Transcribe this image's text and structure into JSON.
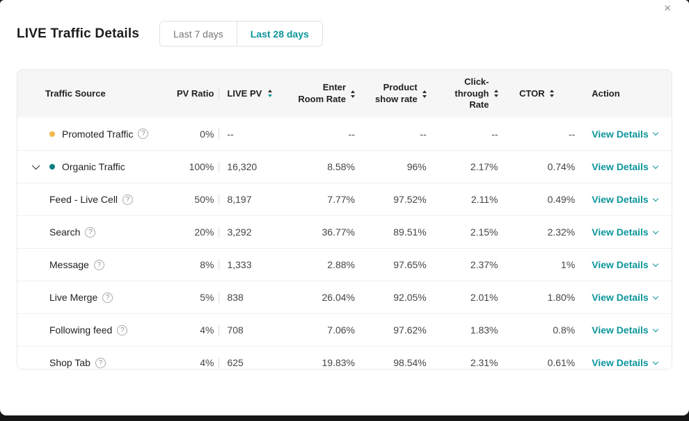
{
  "colors": {
    "teal": "#0c959b",
    "organic": "#0a7e84",
    "amber": "#f3b74d",
    "header-bg": "#f6f6f6",
    "border": "#e8e8e8"
  },
  "icons": {
    "close": "×",
    "help": "?"
  },
  "modal": {
    "title": "LIVE Traffic Details"
  },
  "tabs": [
    {
      "label": "Last 7 days",
      "active": false
    },
    {
      "label": "Last 28 days",
      "active": true
    }
  ],
  "table": {
    "columns": [
      {
        "label": "Traffic Source",
        "sortable": false
      },
      {
        "label": "PV Ratio",
        "sortable": false
      },
      {
        "label": "LIVE PV",
        "sortable": true,
        "sorted": "desc"
      },
      {
        "label": "Enter Room Rate",
        "sortable": true
      },
      {
        "label": "Product show rate",
        "sortable": true
      },
      {
        "label": "Click-through Rate",
        "sortable": true
      },
      {
        "label": "CTOR",
        "sortable": true
      },
      {
        "label": "Action",
        "sortable": false
      }
    ],
    "rows": [
      {
        "type": "parent",
        "dot": "amber",
        "expandable": false,
        "has_help": true,
        "name": "Promoted Traffic",
        "pv_ratio": "0%",
        "live_pv": "--",
        "enter_room_rate": "--",
        "product_show_rate": "--",
        "click_through_rate": "--",
        "ctor": "--",
        "action": "View Details"
      },
      {
        "type": "parent",
        "dot": "organic",
        "expandable": true,
        "has_help": false,
        "name": "Organic Traffic",
        "pv_ratio": "100%",
        "live_pv": "16,320",
        "enter_room_rate": "8.58%",
        "product_show_rate": "96%",
        "click_through_rate": "2.17%",
        "ctor": "0.74%",
        "action": "View Details"
      },
      {
        "type": "child",
        "dot": null,
        "expandable": false,
        "has_help": true,
        "name": "Feed - Live Cell",
        "pv_ratio": "50%",
        "live_pv": "8,197",
        "enter_room_rate": "7.77%",
        "product_show_rate": "97.52%",
        "click_through_rate": "2.11%",
        "ctor": "0.49%",
        "action": "View Details"
      },
      {
        "type": "child",
        "dot": null,
        "expandable": false,
        "has_help": true,
        "name": "Search",
        "pv_ratio": "20%",
        "live_pv": "3,292",
        "enter_room_rate": "36.77%",
        "product_show_rate": "89.51%",
        "click_through_rate": "2.15%",
        "ctor": "2.32%",
        "action": "View Details"
      },
      {
        "type": "child",
        "dot": null,
        "expandable": false,
        "has_help": true,
        "name": "Message",
        "pv_ratio": "8%",
        "live_pv": "1,333",
        "enter_room_rate": "2.88%",
        "product_show_rate": "97.65%",
        "click_through_rate": "2.37%",
        "ctor": "1%",
        "action": "View Details"
      },
      {
        "type": "child",
        "dot": null,
        "expandable": false,
        "has_help": true,
        "name": "Live Merge",
        "pv_ratio": "5%",
        "live_pv": "838",
        "enter_room_rate": "26.04%",
        "product_show_rate": "92.05%",
        "click_through_rate": "2.01%",
        "ctor": "1.80%",
        "action": "View Details"
      },
      {
        "type": "child",
        "dot": null,
        "expandable": false,
        "has_help": true,
        "name": "Following feed",
        "pv_ratio": "4%",
        "live_pv": "708",
        "enter_room_rate": "7.06%",
        "product_show_rate": "97.62%",
        "click_through_rate": "1.83%",
        "ctor": "0.8%",
        "action": "View Details"
      },
      {
        "type": "child",
        "dot": null,
        "expandable": false,
        "has_help": true,
        "name": "Shop Tab",
        "pv_ratio": "4%",
        "live_pv": "625",
        "enter_room_rate": "19.83%",
        "product_show_rate": "98.54%",
        "click_through_rate": "2.31%",
        "ctor": "0.61%",
        "action": "View Details"
      }
    ]
  }
}
